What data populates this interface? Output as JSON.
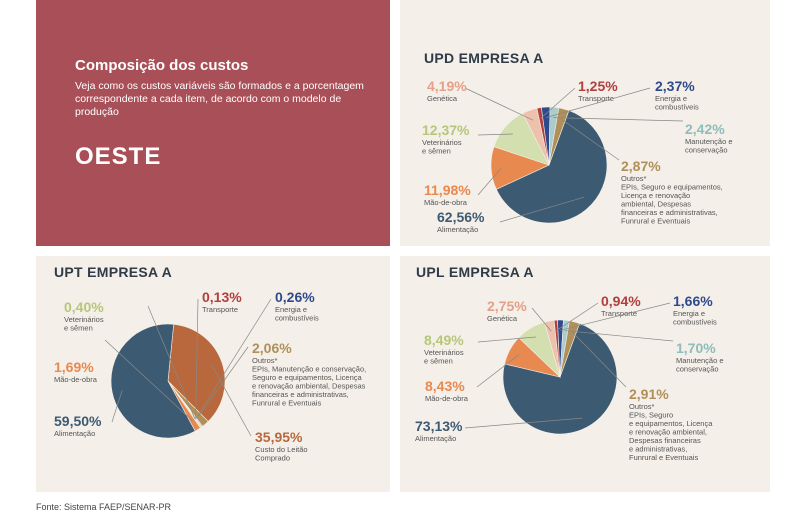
{
  "intro": {
    "title": "Composição dos custos",
    "description": "Veja como os custos variáveis são formados e a porcentagem correspondente a cada item, de acordo com o modelo de produção",
    "region": "OESTE"
  },
  "source": "Fonte: Sistema FAEP/SENAR-PR",
  "colors": {
    "alimentacao": "#3d5a73",
    "mao_de_obra": "#e8894f",
    "veterinarios": "#d4dfb0",
    "genetica": "#eec1ad",
    "transporte": "#b23e3e",
    "energia": "#2f4a8c",
    "manutencao": "#a9cccc",
    "outros": "#b0905a",
    "leite": "#b8683c"
  },
  "chart_data": [
    {
      "type": "pie",
      "title": "UPD EMPRESA A",
      "slices": [
        {
          "key": "alimentacao",
          "value": 62.56,
          "pct": "62,56%",
          "label": [
            "Alimentação"
          ]
        },
        {
          "key": "mao_de_obra",
          "value": 11.98,
          "pct": "11,98%",
          "label": [
            "Mão-de-obra"
          ]
        },
        {
          "key": "veterinarios",
          "value": 12.37,
          "pct": "12,37%",
          "label": [
            "Veterinários",
            "e sêmen"
          ]
        },
        {
          "key": "genetica",
          "value": 4.19,
          "pct": "4,19%",
          "label": [
            "Genética"
          ]
        },
        {
          "key": "transporte",
          "value": 1.25,
          "pct": "1,25%",
          "label": [
            "Transporte"
          ]
        },
        {
          "key": "energia",
          "value": 2.37,
          "pct": "2,37%",
          "label": [
            "Energia e",
            "combustíveis"
          ]
        },
        {
          "key": "manutencao",
          "value": 2.42,
          "pct": "2,42%",
          "label": [
            "Manutenção e",
            "conservação"
          ]
        },
        {
          "key": "outros",
          "value": 2.87,
          "pct": "2,87%",
          "label": [
            "Outros*",
            "EPIs, Seguro e equipamentos,",
            "Licença e renovação",
            "ambiental, Despesas",
            "financeiras e administrativas,",
            "Funrural e Eventuais"
          ]
        }
      ]
    },
    {
      "type": "pie",
      "title": "UPT EMPRESA A",
      "slices": [
        {
          "key": "alimentacao",
          "value": 59.5,
          "pct": "59,50%",
          "label": [
            "Alimentação"
          ]
        },
        {
          "key": "mao_de_obra",
          "value": 1.69,
          "pct": "1,69%",
          "label": [
            "Mão-de-obra"
          ]
        },
        {
          "key": "veterinarios",
          "value": 0.4,
          "pct": "0,40%",
          "label": [
            "Veterinários",
            "e sêmen"
          ]
        },
        {
          "key": "transporte",
          "value": 0.13,
          "pct": "0,13%",
          "label": [
            "Transporte"
          ]
        },
        {
          "key": "energia",
          "value": 0.26,
          "pct": "0,26%",
          "label": [
            "Energia e",
            "combustíveis"
          ]
        },
        {
          "key": "outros",
          "value": 2.06,
          "pct": "2,06%",
          "label": [
            "Outros*",
            "EPIs, Manutenção e conservação,",
            "Seguro e equipamentos, Licença",
            "e renovação ambiental, Despesas",
            "financeiras e administrativas,",
            "Funrural e Eventuais"
          ]
        },
        {
          "key": "leite",
          "value": 35.95,
          "pct": "35,95%",
          "label": [
            "Custo do Leitão",
            "Comprado"
          ]
        }
      ]
    },
    {
      "type": "pie",
      "title": "UPL EMPRESA A",
      "slices": [
        {
          "key": "alimentacao",
          "value": 73.13,
          "pct": "73,13%",
          "label": [
            "Alimentação"
          ]
        },
        {
          "key": "mao_de_obra",
          "value": 8.43,
          "pct": "8,43%",
          "label": [
            "Mão-de-obra"
          ]
        },
        {
          "key": "veterinarios",
          "value": 8.49,
          "pct": "8,49%",
          "label": [
            "Veterinários",
            "e sêmen"
          ]
        },
        {
          "key": "genetica",
          "value": 2.75,
          "pct": "2,75%",
          "label": [
            "Genética"
          ]
        },
        {
          "key": "transporte",
          "value": 0.94,
          "pct": "0,94%",
          "label": [
            "Transporte"
          ]
        },
        {
          "key": "energia",
          "value": 1.66,
          "pct": "1,66%",
          "label": [
            "Energia e",
            "combustíveis"
          ]
        },
        {
          "key": "manutencao",
          "value": 1.7,
          "pct": "1,70%",
          "label": [
            "Manutenção e",
            "conservação"
          ]
        },
        {
          "key": "outros",
          "value": 2.91,
          "pct": "2,91%",
          "label": [
            "Outros*",
            "EPIs, Seguro",
            "e equipamentos, Licença",
            "e renovação ambiental,",
            "Despesas financeiras",
            "e administrativas,",
            "Funrural e Eventuais"
          ]
        }
      ]
    }
  ]
}
